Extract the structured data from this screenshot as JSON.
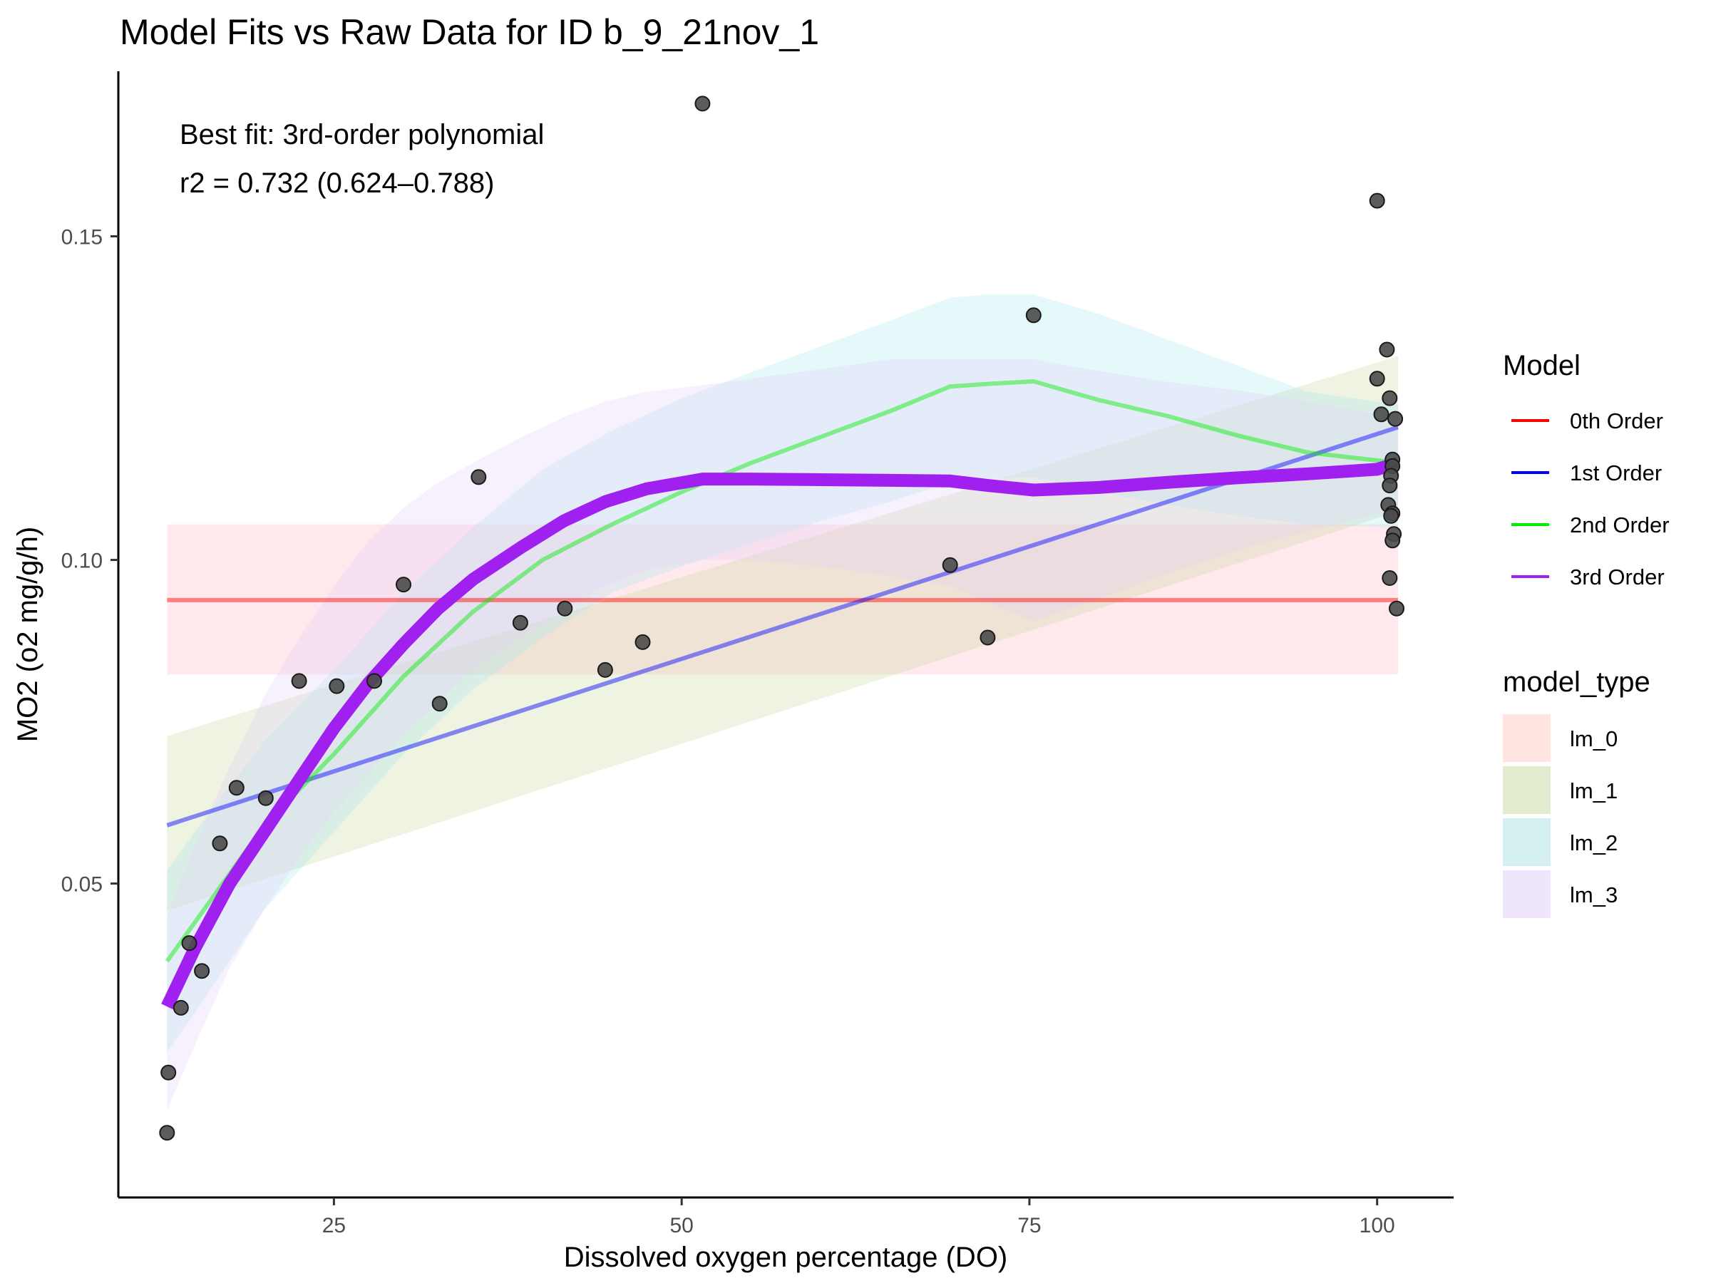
{
  "title": "Model Fits vs Raw Data for ID b_9_21nov_1",
  "xlabel": "Dissolved oxygen percentage (DO)",
  "ylabel": "MO2 (o2 mg/g/h)",
  "annotation": {
    "line1": "Best fit: 3rd-order polynomial",
    "line2": "r2 = 0.732 (0.624–0.788)"
  },
  "legend": {
    "model_title": "Model",
    "model_items": [
      {
        "label": "0th Order",
        "color": "#ff0000"
      },
      {
        "label": "1st Order",
        "color": "#0000ff"
      },
      {
        "label": "2nd Order",
        "color": "#00ee00"
      },
      {
        "label": "3rd Order",
        "color": "#a020f0"
      }
    ],
    "type_title": "model_type",
    "type_items": [
      {
        "label": "lm_0",
        "color": "#ffe4e1"
      },
      {
        "label": "lm_1",
        "color": "#e4ecd0"
      },
      {
        "label": "lm_2",
        "color": "#d4f0f0"
      },
      {
        "label": "lm_3",
        "color": "#efe6fb"
      }
    ]
  },
  "chart_data": {
    "type": "scatter",
    "xlabel": "Dissolved oxygen percentage (DO)",
    "ylabel": "MO2 (o2 mg/g/h)",
    "xlim": [
      9.5,
      105.5
    ],
    "ylim": [
      0.0015,
      0.1755
    ],
    "xticks": [
      25,
      50,
      75,
      100
    ],
    "xtick_labels": [
      "25",
      "50",
      "75",
      "100"
    ],
    "yticks": [
      0.05,
      0.1,
      0.15
    ],
    "ytick_labels": [
      "0.05",
      "0.10",
      "0.15"
    ],
    "grid": false,
    "legend_position": "right",
    "points": [
      [
        13.0,
        0.0115
      ],
      [
        13.1,
        0.0208
      ],
      [
        14.0,
        0.0308
      ],
      [
        14.6,
        0.0408
      ],
      [
        15.5,
        0.0365
      ],
      [
        16.8,
        0.0562
      ],
      [
        18.0,
        0.0648
      ],
      [
        20.1,
        0.0632
      ],
      [
        22.5,
        0.0813
      ],
      [
        25.2,
        0.0805
      ],
      [
        27.9,
        0.0813
      ],
      [
        30.0,
        0.0962
      ],
      [
        32.6,
        0.0778
      ],
      [
        35.4,
        0.1128
      ],
      [
        38.4,
        0.0903
      ],
      [
        41.6,
        0.0925
      ],
      [
        44.5,
        0.083
      ],
      [
        47.2,
        0.0873
      ],
      [
        51.5,
        0.1705
      ],
      [
        69.3,
        0.0992
      ],
      [
        72.0,
        0.088
      ],
      [
        75.3,
        0.1378
      ],
      [
        100.0,
        0.1555
      ],
      [
        100.0,
        0.128
      ],
      [
        100.3,
        0.1225
      ],
      [
        100.7,
        0.1325
      ],
      [
        100.9,
        0.125
      ],
      [
        101.3,
        0.1218
      ],
      [
        101.1,
        0.1155
      ],
      [
        101.1,
        0.1145
      ],
      [
        101.0,
        0.113
      ],
      [
        100.9,
        0.1115
      ],
      [
        100.8,
        0.1085
      ],
      [
        101.1,
        0.1072
      ],
      [
        101.0,
        0.1068
      ],
      [
        101.2,
        0.104
      ],
      [
        101.1,
        0.103
      ],
      [
        100.9,
        0.0972
      ],
      [
        101.4,
        0.0925
      ]
    ],
    "series": [
      {
        "model": "0th Order",
        "model_type": "lm_0",
        "line_color": "#ff0000",
        "ribbon_color": "#ffb6c1",
        "x": [
          13.0,
          101.5
        ],
        "y": [
          0.0938,
          0.0938
        ],
        "lower": [
          0.0823,
          0.0823
        ],
        "upper": [
          0.1055,
          0.1055
        ]
      },
      {
        "model": "1st Order",
        "model_type": "lm_1",
        "line_color": "#0000ff",
        "ribbon_color": "#c8d8a0",
        "x": [
          13.0,
          101.5
        ],
        "y": [
          0.059,
          0.1205
        ],
        "lower": [
          0.0458,
          0.1075
        ],
        "upper": [
          0.0728,
          0.1315
        ]
      },
      {
        "model": "2nd Order",
        "model_type": "lm_2",
        "line_color": "#00ee00",
        "ribbon_color": "#a8e8ee",
        "x": [
          13.0,
          15.0,
          20.0,
          25.0,
          30.0,
          35.0,
          40.0,
          45.0,
          50.0,
          55.0,
          60.0,
          65.0,
          69.3,
          72.0,
          75.3,
          80.0,
          85.0,
          90.0,
          95.0,
          101.5
        ],
        "y": [
          0.038,
          0.044,
          0.059,
          0.07,
          0.082,
          0.092,
          0.1,
          0.1055,
          0.1105,
          0.115,
          0.119,
          0.123,
          0.1268,
          0.1272,
          0.1276,
          0.1247,
          0.1222,
          0.1192,
          0.1166,
          0.115
        ],
        "lower": [
          0.024,
          0.03,
          0.046,
          0.058,
          0.07,
          0.08,
          0.088,
          0.095,
          0.099,
          0.1025,
          0.106,
          0.109,
          0.112,
          0.1125,
          0.1128,
          0.1105,
          0.1085,
          0.1068,
          0.1055,
          0.105
        ],
        "upper": [
          0.052,
          0.058,
          0.072,
          0.083,
          0.095,
          0.105,
          0.114,
          0.12,
          0.125,
          0.129,
          0.133,
          0.137,
          0.1405,
          0.141,
          0.141,
          0.138,
          0.134,
          0.13,
          0.126,
          0.124
        ]
      },
      {
        "model": "3rd Order",
        "model_type": "lm_3",
        "line_color": "#a020f0",
        "ribbon_color": "#e6d2fa",
        "x": [
          13.0,
          15.0,
          17.5,
          20.0,
          22.5,
          25.0,
          27.5,
          30.0,
          32.5,
          35.0,
          38.5,
          41.5,
          44.5,
          47.5,
          51.5,
          55.0,
          60.0,
          65.0,
          69.3,
          72.0,
          75.3,
          80.0,
          85.0,
          90.0,
          95.0,
          100.0,
          101.5
        ],
        "y": [
          0.031,
          0.04,
          0.05,
          0.058,
          0.066,
          0.074,
          0.081,
          0.087,
          0.0925,
          0.097,
          0.102,
          0.106,
          0.109,
          0.111,
          0.1125,
          0.1125,
          0.1124,
          0.1123,
          0.1122,
          0.1115,
          0.1108,
          0.1112,
          0.112,
          0.1127,
          0.1133,
          0.114,
          0.115
        ],
        "lower": [
          0.015,
          0.025,
          0.037,
          0.046,
          0.054,
          0.061,
          0.067,
          0.073,
          0.078,
          0.083,
          0.088,
          0.092,
          0.096,
          0.0985,
          0.1,
          0.1,
          0.099,
          0.0975,
          0.096,
          0.0935,
          0.0905,
          0.094,
          0.098,
          0.1015,
          0.1045,
          0.107,
          0.1075
        ],
        "upper": [
          0.045,
          0.056,
          0.068,
          0.079,
          0.088,
          0.096,
          0.103,
          0.108,
          0.112,
          0.115,
          0.119,
          0.122,
          0.1245,
          0.126,
          0.127,
          0.128,
          0.1295,
          0.131,
          0.131,
          0.131,
          0.131,
          0.1292,
          0.1275,
          0.1262,
          0.1245,
          0.1225,
          0.122
        ]
      }
    ]
  }
}
